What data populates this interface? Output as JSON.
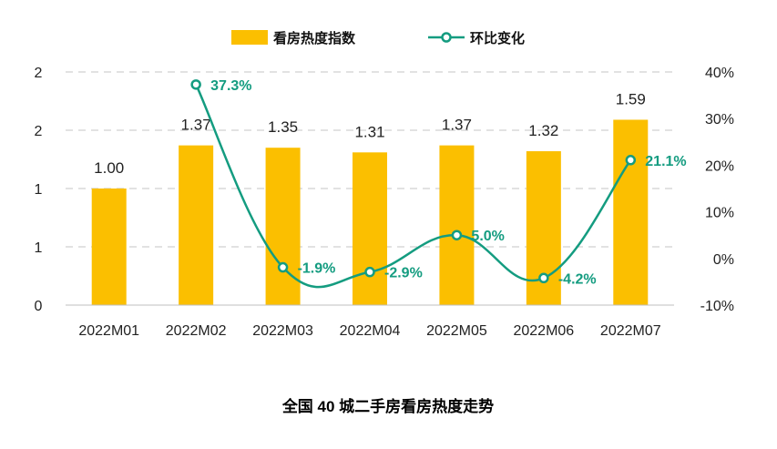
{
  "chart_data": {
    "type": "bar",
    "title": "全国 40 城二手房看房热度走势",
    "categories": [
      "2022M01",
      "2022M02",
      "2022M03",
      "2022M04",
      "2022M05",
      "2022M06",
      "2022M07"
    ],
    "series": [
      {
        "name": "看房热度指数",
        "type": "bar",
        "axis": "left",
        "values": [
          1.0,
          1.37,
          1.35,
          1.31,
          1.37,
          1.32,
          1.59
        ],
        "labels": [
          "1.00",
          "1.37",
          "1.35",
          "1.31",
          "1.37",
          "1.32",
          "1.59"
        ]
      },
      {
        "name": "环比变化",
        "type": "line",
        "axis": "right",
        "values": [
          null,
          37.3,
          -1.9,
          -2.9,
          5.0,
          -4.2,
          21.1
        ],
        "labels": [
          "",
          "37.3%",
          "-1.9%",
          "-2.9%",
          "5.0%",
          "-4.2%",
          "21.1%"
        ]
      }
    ],
    "y_left": {
      "ylim": [
        0,
        2
      ],
      "tick_labels": [
        "0",
        "1",
        "1",
        "2",
        "2"
      ]
    },
    "y_right": {
      "ylim": [
        -10,
        40
      ],
      "tick_labels": [
        "-10%",
        "0%",
        "10%",
        "20%",
        "30%",
        "40%"
      ]
    },
    "grid": true,
    "legend_position": "top-center",
    "colors": {
      "bar": "#FBBF00",
      "line": "#149C80",
      "grid": "#D0D0D0"
    }
  }
}
